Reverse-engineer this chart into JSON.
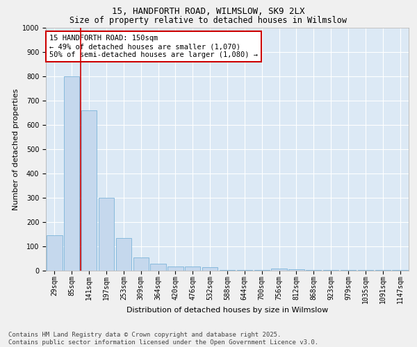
{
  "title_line1": "15, HANDFORTH ROAD, WILMSLOW, SK9 2LX",
  "title_line2": "Size of property relative to detached houses in Wilmslow",
  "xlabel": "Distribution of detached houses by size in Wilmslow",
  "ylabel": "Number of detached properties",
  "bar_color": "#c5d8ed",
  "bar_edge_color": "#6aaad4",
  "background_color": "#dce9f5",
  "fig_background": "#f0f0f0",
  "grid_color": "#ffffff",
  "categories": [
    "29sqm",
    "85sqm",
    "141sqm",
    "197sqm",
    "253sqm",
    "309sqm",
    "364sqm",
    "420sqm",
    "476sqm",
    "532sqm",
    "588sqm",
    "644sqm",
    "700sqm",
    "756sqm",
    "812sqm",
    "868sqm",
    "923sqm",
    "979sqm",
    "1035sqm",
    "1091sqm",
    "1147sqm"
  ],
  "values": [
    145,
    800,
    660,
    300,
    135,
    55,
    28,
    18,
    18,
    14,
    2,
    2,
    2,
    8,
    6,
    2,
    2,
    2,
    2,
    2,
    2
  ],
  "ylim": [
    0,
    1000
  ],
  "yticks": [
    0,
    100,
    200,
    300,
    400,
    500,
    600,
    700,
    800,
    900,
    1000
  ],
  "vline_x": 1.5,
  "vline_color": "#cc0000",
  "annotation_title": "15 HANDFORTH ROAD: 150sqm",
  "annotation_line2": "← 49% of detached houses are smaller (1,070)",
  "annotation_line3": "50% of semi-detached houses are larger (1,080) →",
  "annotation_box_color": "#ffffff",
  "annotation_box_edge": "#cc0000",
  "footer_line1": "Contains HM Land Registry data © Crown copyright and database right 2025.",
  "footer_line2": "Contains public sector information licensed under the Open Government Licence v3.0.",
  "title_fontsize": 9,
  "subtitle_fontsize": 8.5,
  "axis_label_fontsize": 8,
  "tick_fontsize": 7,
  "annotation_fontsize": 7.5,
  "footer_fontsize": 6.5
}
